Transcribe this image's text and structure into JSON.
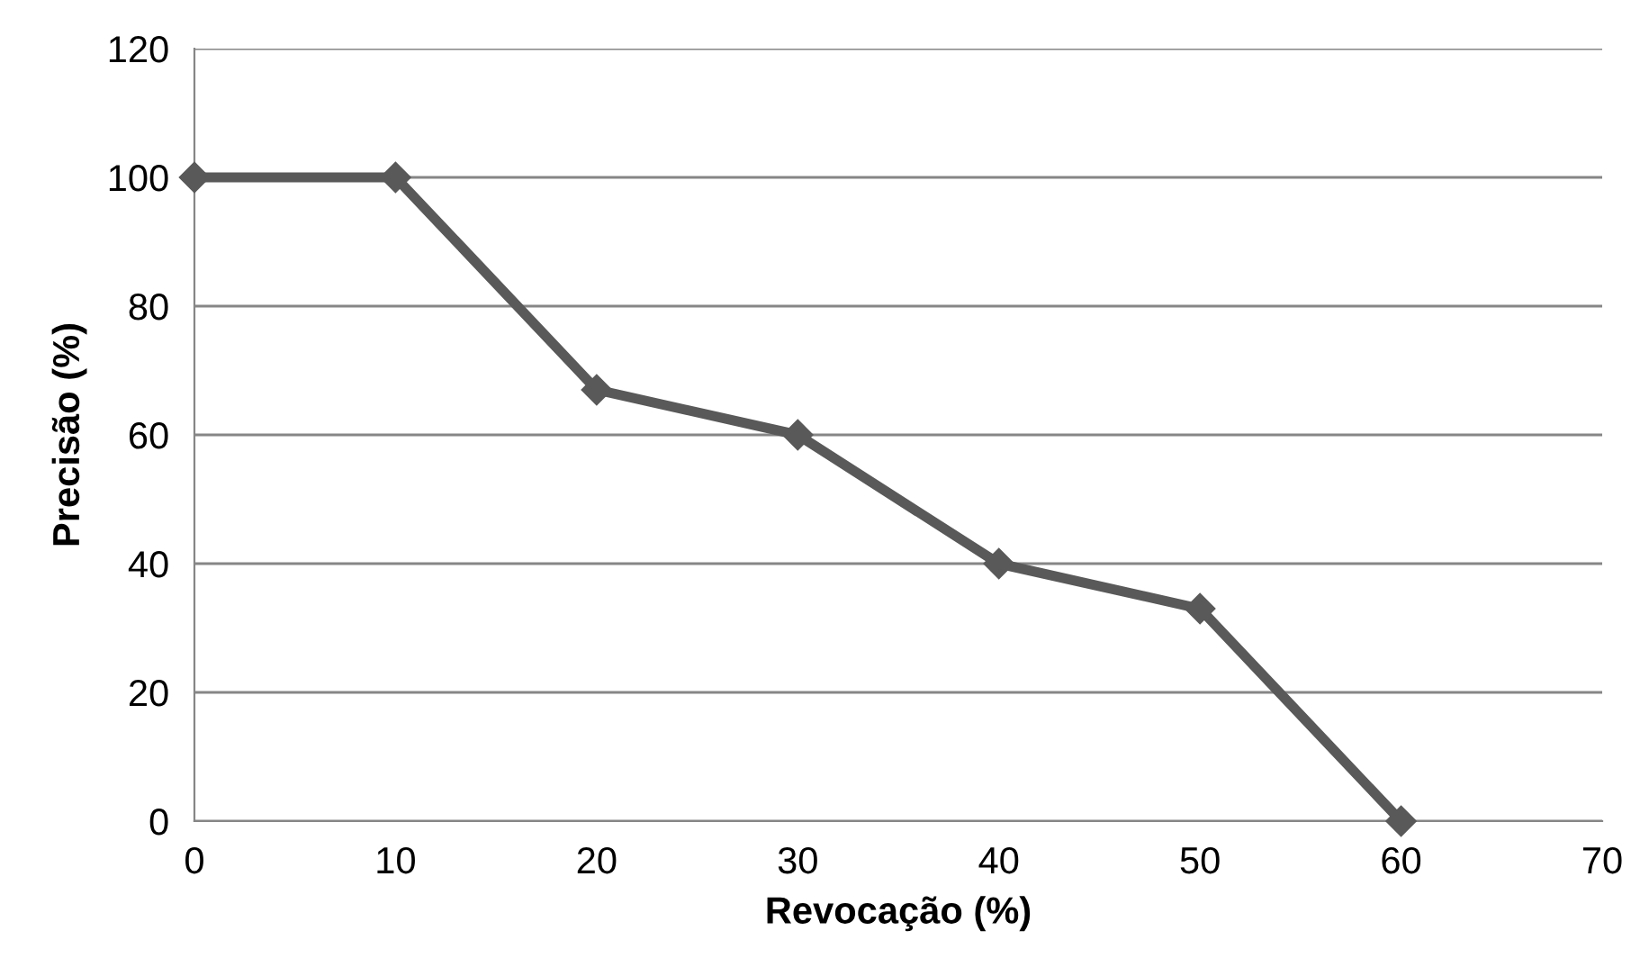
{
  "chart_data": {
    "type": "line",
    "xlabel": "Revocação (%)",
    "ylabel": "Precisão (%)",
    "x": [
      0,
      10,
      20,
      30,
      40,
      50,
      60
    ],
    "series": [
      {
        "color": "#595959",
        "values": [
          100,
          100,
          67,
          60,
          40,
          33,
          0
        ]
      }
    ],
    "xlim": [
      0,
      70
    ],
    "xticks": [
      0,
      10,
      20,
      30,
      40,
      50,
      60,
      70
    ],
    "ylim": [
      0,
      120
    ],
    "yticks": [
      0,
      20,
      40,
      60,
      80,
      100,
      120
    ],
    "grid": "y",
    "legend": false,
    "marker": "diamond",
    "line_style": "solid"
  }
}
